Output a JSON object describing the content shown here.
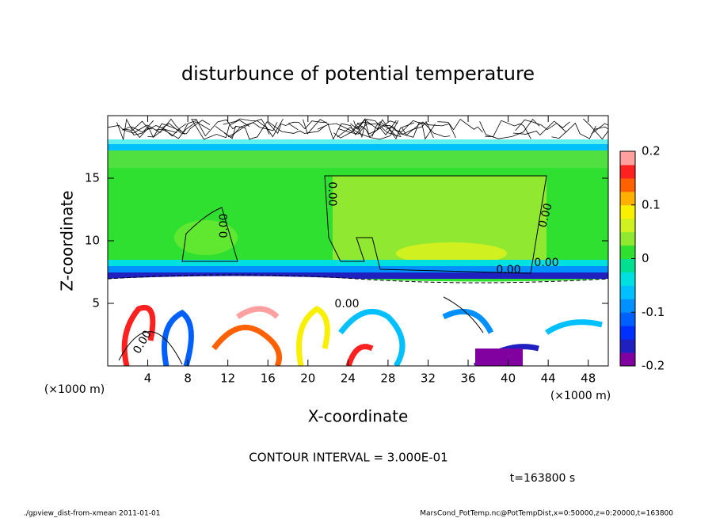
{
  "chart_data": {
    "type": "contour",
    "title": "disturbunce of potential temperature",
    "x_label": "X-coordinate",
    "y_label": "Z-coordinate",
    "x_unit": "(×1000 m)",
    "y_unit": "(×1000 m)",
    "xlim": [
      0,
      50
    ],
    "xticks": [
      4,
      8,
      12,
      16,
      20,
      24,
      28,
      32,
      36,
      40,
      44,
      48
    ],
    "ylim": [
      0,
      20
    ],
    "yticks": [
      5,
      10,
      15
    ],
    "colorbar": {
      "lim": [
        -0.2,
        0.2
      ],
      "ticks": [
        -0.2,
        -0.1,
        0,
        0.1,
        0.2
      ],
      "colors": [
        "#8000a0",
        "#2020c0",
        "#0030ff",
        "#0060ff",
        "#0090ff",
        "#00c0ff",
        "#00e0e0",
        "#00e090",
        "#30e030",
        "#90e830",
        "#d0f020",
        "#f8f000",
        "#ffb000",
        "#ff6000",
        "#ff2020",
        "#ffa0a0"
      ]
    },
    "contour_interval_text": "CONTOUR INTERVAL = 3.000E-01",
    "contour_labels": [
      "0.00",
      "0.00",
      "0.00",
      "0.00",
      "0.00",
      "0.00",
      "0.00"
    ],
    "time_label": "t=163800 s"
  },
  "footer": {
    "left": "./gpview_dist-from-xmean  2011-01-01",
    "right": "MarsCond_PotTemp.nc@PotTempDist,x=0:50000,z=0:20000,t=163800"
  }
}
